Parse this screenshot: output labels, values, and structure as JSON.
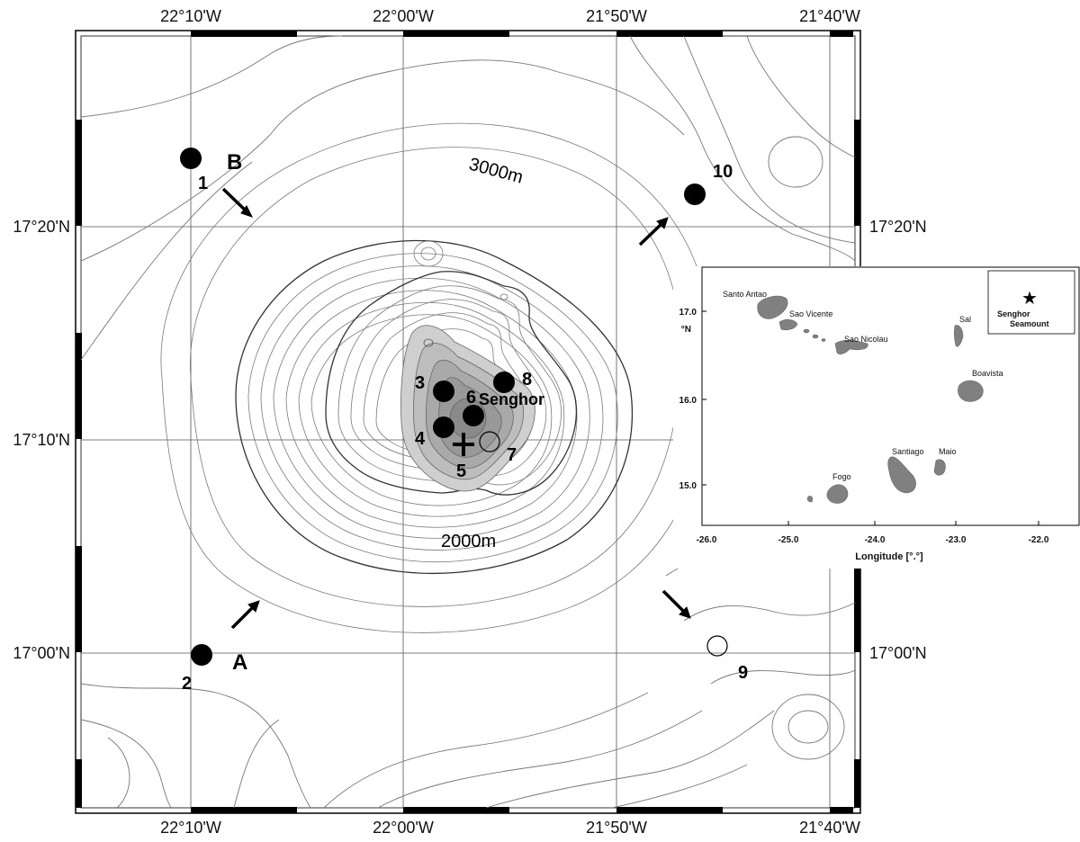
{
  "map": {
    "top_longitudes": [
      "22°10'W",
      "22°00'W",
      "21°50'W",
      "21°40'W"
    ],
    "bottom_longitudes": [
      "22°10'W",
      "22°00'W",
      "21°50'W",
      "21°40'W"
    ],
    "left_latitudes": [
      "17°20'N",
      "17°10'N",
      "17°00'N"
    ],
    "right_latitudes": [
      "17°20'N",
      "17°00'N"
    ],
    "contour_labels": {
      "deep": "3000m",
      "shallow": "2000m"
    },
    "seamount_name": "Senghor",
    "flow_labels": {
      "a": "A",
      "b": "B"
    },
    "stations": [
      "1",
      "2",
      "3",
      "4",
      "5",
      "6",
      "7",
      "8",
      "9",
      "10"
    ]
  },
  "inset": {
    "islands": [
      "Santo Antao",
      "Sao Vicente",
      "Sao Nicolau",
      "Sal",
      "Boavista",
      "Santiago",
      "Maio",
      "Fogo"
    ],
    "lat_ticks": [
      "17.0",
      "16.0",
      "15.0"
    ],
    "lat_unit": "°N",
    "lon_ticks": [
      "-26.0",
      "-25.0",
      "-24.0",
      "-23.0",
      "-22.0"
    ],
    "xlabel": "Longitude [°.°]",
    "legend_label": [
      "Senghor",
      "Seamount"
    ],
    "legend_symbol": "★"
  }
}
